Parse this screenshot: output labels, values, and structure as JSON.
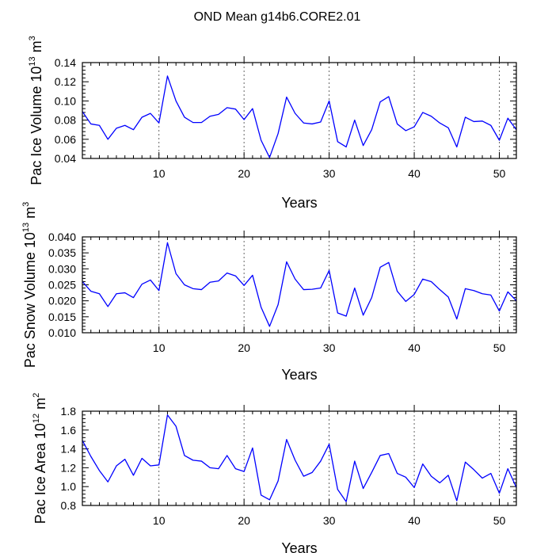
{
  "title": "OND Mean g14b6.CORE2.01",
  "chart_data": [
    {
      "type": "line",
      "title": "OND Mean g14b6.CORE2.01",
      "xlabel": "Years",
      "ylabel_prefix": "Pac Ice Volume 10",
      "ylabel_exp": "13",
      "ylabel_unit": " m",
      "ylabel_unit_exp": "3",
      "xlim": [
        1,
        52
      ],
      "ylim": [
        0.04,
        0.14
      ],
      "xticks": [
        10,
        20,
        30,
        40,
        50
      ],
      "xtick_labels": [
        "10",
        "20",
        "30",
        "40",
        "50"
      ],
      "yticks": [
        0.04,
        0.06,
        0.08,
        0.1,
        0.12,
        0.14
      ],
      "ytick_labels": [
        "0.04",
        "0.06",
        "0.08",
        "0.10",
        "0.12",
        "0.14"
      ],
      "series": [
        {
          "name": "Pac Ice Volume",
          "color": "#0000ff",
          "values": [
            0.089,
            0.076,
            0.0745,
            0.06,
            0.0715,
            0.0745,
            0.07,
            0.083,
            0.087,
            0.077,
            0.126,
            0.1,
            0.083,
            0.0775,
            0.0775,
            0.084,
            0.086,
            0.093,
            0.0915,
            0.0805,
            0.092,
            0.059,
            0.041,
            0.066,
            0.104,
            0.087,
            0.077,
            0.076,
            0.078,
            0.1,
            0.0575,
            0.052,
            0.08,
            0.0535,
            0.07,
            0.099,
            0.1045,
            0.076,
            0.069,
            0.073,
            0.088,
            0.084,
            0.077,
            0.072,
            0.052,
            0.083,
            0.0785,
            0.079,
            0.0745,
            0.059,
            0.082,
            0.07
          ]
        }
      ]
    },
    {
      "type": "line",
      "xlabel": "Years",
      "ylabel_prefix": "Pac Snow Volume 10",
      "ylabel_exp": "13",
      "ylabel_unit": " m",
      "ylabel_unit_exp": "3",
      "xlim": [
        1,
        52
      ],
      "ylim": [
        0.01,
        0.04
      ],
      "xticks": [
        10,
        20,
        30,
        40,
        50
      ],
      "xtick_labels": [
        "10",
        "20",
        "30",
        "40",
        "50"
      ],
      "yticks": [
        0.01,
        0.015,
        0.02,
        0.025,
        0.03,
        0.035,
        0.04
      ],
      "ytick_labels": [
        "0.010",
        "0.015",
        "0.020",
        "0.025",
        "0.030",
        "0.035",
        "0.040"
      ],
      "series": [
        {
          "name": "Pac Snow Volume",
          "color": "#0000ff",
          "values": [
            0.026,
            0.023,
            0.0222,
            0.0182,
            0.0222,
            0.0225,
            0.021,
            0.0252,
            0.0265,
            0.0232,
            0.0382,
            0.0285,
            0.025,
            0.0238,
            0.0235,
            0.0258,
            0.0262,
            0.0287,
            0.0278,
            0.0248,
            0.028,
            0.018,
            0.012,
            0.0188,
            0.0322,
            0.0268,
            0.0235,
            0.0236,
            0.024,
            0.0295,
            0.0162,
            0.0152,
            0.024,
            0.0155,
            0.021,
            0.0305,
            0.032,
            0.023,
            0.0198,
            0.022,
            0.0268,
            0.026,
            0.0235,
            0.0212,
            0.0143,
            0.0238,
            0.0232,
            0.0222,
            0.0218,
            0.0168,
            0.0228,
            0.02
          ]
        }
      ]
    },
    {
      "type": "line",
      "xlabel": "Years",
      "ylabel_prefix": "Pac Ice Area 10",
      "ylabel_exp": "12",
      "ylabel_unit": " m",
      "ylabel_unit_exp": "2",
      "xlim": [
        1,
        52
      ],
      "ylim": [
        0.8,
        1.8
      ],
      "xticks": [
        10,
        20,
        30,
        40,
        50
      ],
      "xtick_labels": [
        "10",
        "20",
        "30",
        "40",
        "50"
      ],
      "yticks": [
        0.8,
        1.0,
        1.2,
        1.4,
        1.6,
        1.8
      ],
      "ytick_labels": [
        "0.8",
        "1.0",
        "1.2",
        "1.4",
        "1.6",
        "1.8"
      ],
      "series": [
        {
          "name": "Pac Ice Area",
          "color": "#0000ff",
          "values": [
            1.49,
            1.32,
            1.17,
            1.05,
            1.22,
            1.29,
            1.12,
            1.3,
            1.22,
            1.23,
            1.76,
            1.64,
            1.33,
            1.28,
            1.27,
            1.2,
            1.19,
            1.33,
            1.19,
            1.16,
            1.41,
            0.91,
            0.86,
            1.06,
            1.5,
            1.28,
            1.11,
            1.15,
            1.27,
            1.45,
            0.97,
            0.84,
            1.27,
            0.98,
            1.15,
            1.33,
            1.35,
            1.14,
            1.1,
            0.99,
            1.24,
            1.11,
            1.04,
            1.12,
            0.85,
            1.26,
            1.18,
            1.09,
            1.14,
            0.93,
            1.19,
            0.99
          ]
        }
      ]
    }
  ]
}
